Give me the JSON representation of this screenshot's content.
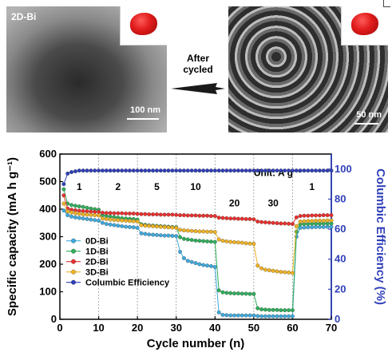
{
  "figure": {
    "left_label": "2D-Bi",
    "left_scale": "100 nm",
    "arrow_text_line1": "After",
    "arrow_text_line2": "cycled",
    "right_scale": "50 nm"
  },
  "chart_data": {
    "type": "line",
    "xlabel": "Cycle number (n)",
    "ylabel": "Specific capacity (mA h g⁻¹)",
    "y2label": "Columbic Efficiency (%)",
    "xlim": [
      0,
      70
    ],
    "ylim": [
      0,
      600
    ],
    "y2lim": [
      0,
      110
    ],
    "xticks": [
      0,
      10,
      20,
      30,
      40,
      50,
      60,
      70
    ],
    "yticks": [
      0,
      100,
      200,
      300,
      400,
      500,
      600
    ],
    "y2ticks": [
      0,
      20,
      40,
      60,
      80,
      100
    ],
    "unit_annotation": "Unit: A g⁻¹",
    "rate_labels": [
      {
        "text": "1",
        "x": 5
      },
      {
        "text": "2",
        "x": 15
      },
      {
        "text": "5",
        "x": 25
      },
      {
        "text": "10",
        "x": 35
      },
      {
        "text": "20",
        "x": 45
      },
      {
        "text": "30",
        "x": 55
      },
      {
        "text": "1",
        "x": 65
      }
    ],
    "dividers": [
      10,
      20,
      30,
      40,
      50,
      60
    ],
    "legend_position": "bottom-left",
    "grid": false,
    "series": [
      {
        "name": "0D-Bi",
        "color": "#3fa9dc",
        "x": [
          1,
          2,
          3,
          4,
          5,
          6,
          7,
          8,
          9,
          10,
          11,
          12,
          13,
          14,
          15,
          16,
          17,
          18,
          19,
          20,
          21,
          22,
          23,
          24,
          25,
          26,
          27,
          28,
          29,
          30,
          31,
          32,
          33,
          34,
          35,
          36,
          37,
          38,
          39,
          40,
          41,
          42,
          43,
          44,
          45,
          46,
          47,
          48,
          49,
          50,
          51,
          52,
          53,
          54,
          55,
          56,
          57,
          58,
          59,
          60,
          61,
          62,
          63,
          64,
          65,
          66,
          67,
          68,
          69,
          70
        ],
        "y": [
          395,
          378,
          373,
          370,
          368,
          366,
          364,
          362,
          360,
          358,
          350,
          346,
          344,
          342,
          340,
          338,
          336,
          335,
          334,
          332,
          312,
          310,
          308,
          307,
          306,
          305,
          304,
          304,
          303,
          302,
          245,
          222,
          212,
          208,
          204,
          200,
          197,
          195,
          193,
          190,
          25,
          16,
          15,
          14,
          14,
          14,
          14,
          14,
          14,
          14,
          12,
          11,
          11,
          11,
          11,
          11,
          11,
          11,
          11,
          11,
          300,
          332,
          333,
          334,
          334,
          335,
          335,
          335,
          336,
          336
        ]
      },
      {
        "name": "1D-Bi",
        "color": "#2fae5b",
        "x": [
          1,
          2,
          3,
          4,
          5,
          6,
          7,
          8,
          9,
          10,
          11,
          12,
          13,
          14,
          15,
          16,
          17,
          18,
          19,
          20,
          21,
          22,
          23,
          24,
          25,
          26,
          27,
          28,
          29,
          30,
          31,
          32,
          33,
          34,
          35,
          36,
          37,
          38,
          39,
          40,
          41,
          42,
          43,
          44,
          45,
          46,
          47,
          48,
          49,
          50,
          51,
          52,
          53,
          54,
          55,
          56,
          57,
          58,
          59,
          60,
          61,
          62,
          63,
          64,
          65,
          66,
          67,
          68,
          69,
          70
        ],
        "y": [
          472,
          420,
          415,
          412,
          410,
          408,
          405,
          402,
          400,
          398,
          378,
          375,
          373,
          371,
          369,
          367,
          366,
          365,
          364,
          362,
          345,
          343,
          341,
          340,
          339,
          338,
          337,
          336,
          335,
          334,
          298,
          292,
          290,
          288,
          286,
          285,
          284,
          283,
          282,
          281,
          105,
          98,
          96,
          95,
          94,
          94,
          93,
          93,
          92,
          92,
          40,
          36,
          35,
          34,
          34,
          34,
          33,
          33,
          33,
          33,
          318,
          345,
          346,
          346,
          347,
          347,
          347,
          348,
          348,
          348
        ]
      },
      {
        "name": "2D-Bi",
        "color": "#e8302e",
        "x": [
          1,
          2,
          3,
          4,
          5,
          6,
          7,
          8,
          9,
          10,
          11,
          12,
          13,
          14,
          15,
          16,
          17,
          18,
          19,
          20,
          21,
          22,
          23,
          24,
          25,
          26,
          27,
          28,
          29,
          30,
          31,
          32,
          33,
          34,
          35,
          36,
          37,
          38,
          39,
          40,
          41,
          42,
          43,
          44,
          45,
          46,
          47,
          48,
          49,
          50,
          51,
          52,
          53,
          54,
          55,
          56,
          57,
          58,
          59,
          60,
          61,
          62,
          63,
          64,
          65,
          66,
          67,
          68,
          69,
          70
        ],
        "y": [
          450,
          402,
          398,
          396,
          394,
          393,
          392,
          391,
          390,
          390,
          387,
          386,
          386,
          385,
          385,
          385,
          384,
          384,
          384,
          383,
          382,
          382,
          381,
          381,
          381,
          380,
          380,
          380,
          380,
          379,
          378,
          378,
          377,
          377,
          377,
          376,
          376,
          376,
          375,
          375,
          369,
          368,
          367,
          366,
          366,
          365,
          365,
          364,
          364,
          363,
          355,
          353,
          352,
          351,
          350,
          349,
          348,
          348,
          347,
          346,
          370,
          375,
          376,
          376,
          377,
          377,
          377,
          378,
          378,
          378
        ]
      },
      {
        "name": "3D-Bi",
        "color": "#f0b323",
        "x": [
          1,
          2,
          3,
          4,
          5,
          6,
          7,
          8,
          9,
          10,
          11,
          12,
          13,
          14,
          15,
          16,
          17,
          18,
          19,
          20,
          21,
          22,
          23,
          24,
          25,
          26,
          27,
          28,
          29,
          30,
          31,
          32,
          33,
          34,
          35,
          36,
          37,
          38,
          39,
          40,
          41,
          42,
          43,
          44,
          45,
          46,
          47,
          48,
          49,
          50,
          51,
          52,
          53,
          54,
          55,
          56,
          57,
          58,
          59,
          60,
          61,
          62,
          63,
          64,
          65,
          66,
          67,
          68,
          69,
          70
        ],
        "y": [
          420,
          392,
          388,
          385,
          383,
          381,
          380,
          379,
          378,
          377,
          366,
          364,
          362,
          361,
          360,
          359,
          358,
          357,
          356,
          355,
          342,
          340,
          339,
          338,
          337,
          336,
          335,
          334,
          333,
          332,
          325,
          323,
          322,
          321,
          320,
          319,
          319,
          318,
          318,
          317,
          290,
          285,
          283,
          281,
          280,
          279,
          278,
          276,
          275,
          274,
          195,
          185,
          180,
          178,
          176,
          174,
          172,
          171,
          170,
          168,
          338,
          355,
          356,
          357,
          357,
          358,
          358,
          358,
          359,
          359
        ]
      },
      {
        "name": "Columbic Efficiency",
        "color": "#2f3fb9",
        "axis": "right",
        "x": [
          1,
          2,
          3,
          4,
          5,
          6,
          7,
          8,
          9,
          10,
          11,
          12,
          13,
          14,
          15,
          16,
          17,
          18,
          19,
          20,
          21,
          22,
          23,
          24,
          25,
          26,
          27,
          28,
          29,
          30,
          31,
          32,
          33,
          34,
          35,
          36,
          37,
          38,
          39,
          40,
          41,
          42,
          43,
          44,
          45,
          46,
          47,
          48,
          49,
          50,
          51,
          52,
          53,
          54,
          55,
          56,
          57,
          58,
          59,
          60,
          61,
          62,
          63,
          64,
          65,
          66,
          67,
          68,
          69,
          70
        ],
        "y": [
          90,
          97,
          98,
          98.5,
          99,
          99,
          99,
          99,
          99,
          99,
          99,
          99,
          99,
          99,
          99,
          99,
          99,
          99,
          99,
          99,
          99,
          99,
          99,
          99,
          99,
          99,
          99,
          99,
          99,
          99,
          99,
          99,
          99,
          99,
          99,
          99,
          99,
          99,
          99,
          99,
          99,
          99,
          99,
          99,
          99,
          99,
          99,
          99,
          99,
          99,
          99,
          99,
          99,
          99,
          99,
          99,
          99,
          99,
          99,
          99,
          99,
          99,
          99,
          99,
          99,
          99,
          99,
          99,
          99,
          99
        ]
      }
    ]
  }
}
